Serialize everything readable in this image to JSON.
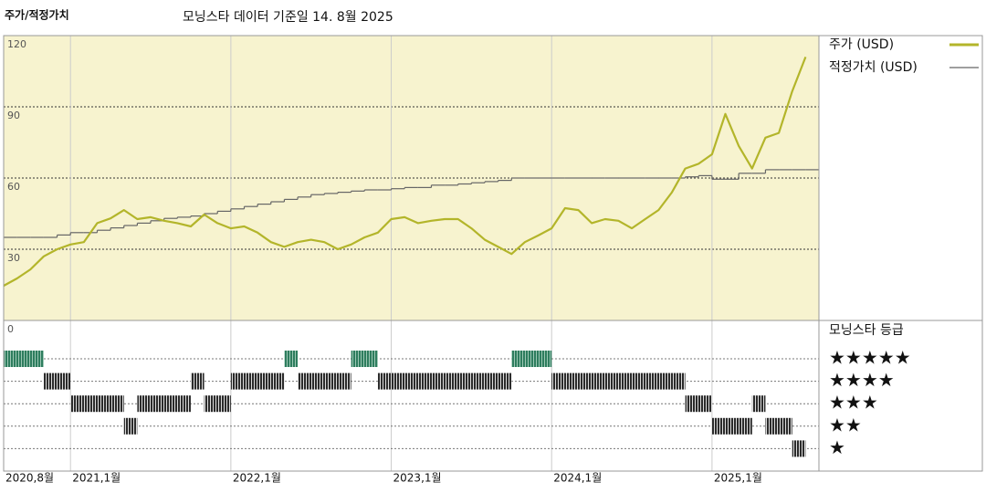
{
  "chart_data": {
    "type": "line",
    "title": "주가/적정가치",
    "subtitle": "모닝스타 데이터 기준일 14. 8월 2025",
    "x": [
      "2020-08",
      "2020-09",
      "2020-10",
      "2020-11",
      "2020-12",
      "2021-01",
      "2021-02",
      "2021-03",
      "2021-04",
      "2021-05",
      "2021-06",
      "2021-07",
      "2021-08",
      "2021-09",
      "2021-10",
      "2021-11",
      "2021-12",
      "2022-01",
      "2022-02",
      "2022-03",
      "2022-04",
      "2022-05",
      "2022-06",
      "2022-07",
      "2022-08",
      "2022-09",
      "2022-10",
      "2022-11",
      "2022-12",
      "2023-01",
      "2023-02",
      "2023-03",
      "2023-04",
      "2023-05",
      "2023-06",
      "2023-07",
      "2023-08",
      "2023-09",
      "2023-10",
      "2023-11",
      "2023-12",
      "2024-01",
      "2024-02",
      "2024-03",
      "2024-04",
      "2024-05",
      "2024-06",
      "2024-07",
      "2024-08",
      "2024-09",
      "2024-10",
      "2024-11",
      "2024-12",
      "2025-01",
      "2025-02",
      "2025-03",
      "2025-04",
      "2025-05",
      "2025-06",
      "2025-07",
      "2025-08"
    ],
    "series": [
      {
        "name": "주가 (USD)",
        "color": "#b3b52a",
        "style": "line",
        "values": [
          14.6,
          17.7,
          21.5,
          27,
          30,
          32,
          33,
          41,
          43,
          46.5,
          42.7,
          43.5,
          42,
          41,
          39.6,
          44.6,
          41,
          38.8,
          39.6,
          37,
          33,
          31,
          33,
          34,
          33,
          30,
          32,
          35,
          37,
          42.7,
          43.5,
          41,
          42,
          42.7,
          42.7,
          38.8,
          34,
          31,
          28,
          33,
          35.8,
          38.8,
          47.3,
          46.5,
          41,
          42.7,
          42,
          38.8,
          42.7,
          46.5,
          54,
          64,
          66,
          70,
          87,
          73.5,
          64,
          77,
          79,
          96.5,
          111
        ]
      },
      {
        "name": "적정가치 (USD)",
        "color": "#666666",
        "style": "step",
        "values": [
          35,
          35,
          35,
          35,
          36,
          37,
          37,
          38,
          39,
          40,
          41,
          42,
          43,
          43.5,
          44,
          45,
          46,
          47,
          48,
          49,
          50,
          51,
          52,
          53,
          53.5,
          54,
          54.5,
          55,
          55,
          55.5,
          56,
          56,
          57,
          57,
          57.5,
          58,
          58.5,
          59,
          60,
          60,
          60,
          60,
          60,
          60,
          60,
          60,
          60,
          60,
          60,
          60,
          60,
          60.5,
          61,
          59.5,
          59.5,
          62,
          62,
          63.5,
          63.5,
          63.5,
          63.5
        ]
      }
    ],
    "xlim": [
      "2020-08",
      "2025-09"
    ],
    "xticks": [
      {
        "value": "2020-08",
        "label": "2020,8월"
      },
      {
        "value": "2021-01",
        "label": "2021,1월"
      },
      {
        "value": "2022-01",
        "label": "2022,1월"
      },
      {
        "value": "2023-01",
        "label": "2023,1월"
      },
      {
        "value": "2024-01",
        "label": "2024,1월"
      },
      {
        "value": "2025-01",
        "label": "2025,1월"
      }
    ],
    "ylim": [
      0,
      120
    ],
    "yticks": [
      0,
      30,
      60,
      90,
      120
    ],
    "grid": true,
    "legend": "right",
    "rating_title": "모닝스타 등급",
    "rating_labels": [
      "★★★★★",
      "★★★★",
      "★★★",
      "★★",
      "★"
    ],
    "rating_colors": {
      "5": "#2e7d5e",
      "other": "#2b2b2b"
    },
    "ratings": [
      {
        "start": "2020-08",
        "end": "2020-11",
        "stars": 5
      },
      {
        "start": "2020-11",
        "end": "2021-01",
        "stars": 4
      },
      {
        "start": "2021-01",
        "end": "2021-05",
        "stars": 3
      },
      {
        "start": "2021-05",
        "end": "2021-06",
        "stars": 2
      },
      {
        "start": "2021-06",
        "end": "2021-10",
        "stars": 3
      },
      {
        "start": "2021-10",
        "end": "2021-11",
        "stars": 4
      },
      {
        "start": "2021-11",
        "end": "2022-01",
        "stars": 3
      },
      {
        "start": "2022-01",
        "end": "2022-05",
        "stars": 4
      },
      {
        "start": "2022-05",
        "end": "2022-06",
        "stars": 5
      },
      {
        "start": "2022-06",
        "end": "2022-10",
        "stars": 4
      },
      {
        "start": "2022-10",
        "end": "2022-12",
        "stars": 5
      },
      {
        "start": "2022-12",
        "end": "2023-10",
        "stars": 4
      },
      {
        "start": "2023-10",
        "end": "2024-01",
        "stars": 5
      },
      {
        "start": "2024-01",
        "end": "2024-11",
        "stars": 4
      },
      {
        "start": "2024-11",
        "end": "2025-01",
        "stars": 3
      },
      {
        "start": "2025-01",
        "end": "2025-04",
        "stars": 2
      },
      {
        "start": "2025-04",
        "end": "2025-05",
        "stars": 3
      },
      {
        "start": "2025-05",
        "end": "2025-07",
        "stars": 2
      },
      {
        "start": "2025-07",
        "end": "2025-08",
        "stars": 1
      }
    ]
  }
}
